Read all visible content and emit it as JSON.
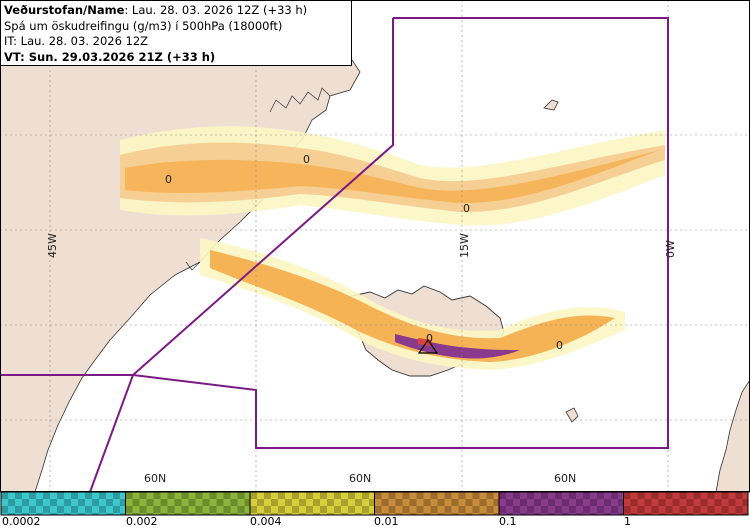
{
  "header": {
    "title_bold": "Veðurstofan/Name",
    "title_rest": ": Lau. 28. 03. 2026 12Z (+33 h)",
    "line2": "Spá um öskudreifingu (g/m3) í 500hPa (18000ft)",
    "line3": "IT: Lau. 28. 03. 2026 12Z",
    "line4": "VT: Sun. 29.03.2026 21Z (+33 h)"
  },
  "map": {
    "lon_labels": [
      "45W",
      "15W",
      "0W"
    ],
    "lat_labels": [
      "60N",
      "60N",
      "60N"
    ],
    "contour_labels": [
      "0",
      "0",
      "0",
      "0",
      "0"
    ],
    "colors": {
      "land": "#efdfd3",
      "sea": "#ffffff",
      "fir_boundary": "#7a1a85",
      "grid": "#8a8a8a",
      "volcano": "#000000"
    }
  },
  "legend": {
    "ticks": [
      "0.0002",
      "0.002",
      "0.004",
      "0.01",
      "0.1",
      "1"
    ],
    "colors": [
      "#3cc7cf",
      "#8ab43a",
      "#d6cf3a",
      "#c98c3a",
      "#8a3a8c",
      "#c43a3a"
    ]
  }
}
